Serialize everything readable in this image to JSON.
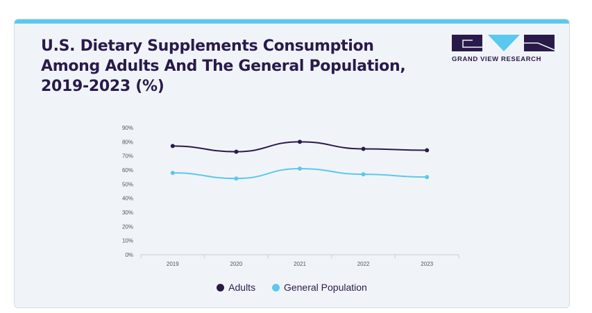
{
  "title": "U.S. Dietary Supplements Consumption Among Adults And The General Population, 2019-2023 (%)",
  "brand": {
    "name": "GRAND VIEW RESEARCH",
    "logo_icon": "gvr-logo-icon",
    "colors": {
      "primary": "#2a1a4a",
      "accent": "#5bc8f0"
    }
  },
  "chart_data": {
    "type": "line",
    "title": "U.S. Dietary Supplements Consumption Among Adults And The General Population, 2019-2023 (%)",
    "categories": [
      "2019",
      "2020",
      "2021",
      "2022",
      "2023"
    ],
    "series": [
      {
        "name": "Adults",
        "values": [
          77,
          73,
          80,
          75,
          74
        ],
        "color": "#2a1a4a"
      },
      {
        "name": "General Population",
        "values": [
          58,
          54,
          61,
          57,
          55
        ],
        "color": "#5bc8f0"
      }
    ],
    "yticks": [
      "0%",
      "10%",
      "20%",
      "30%",
      "40%",
      "50%",
      "60%",
      "70%",
      "80%",
      "90%"
    ],
    "ylim": [
      0,
      90
    ],
    "xlabel": "",
    "ylabel": "",
    "grid": false,
    "legend_position": "bottom"
  }
}
